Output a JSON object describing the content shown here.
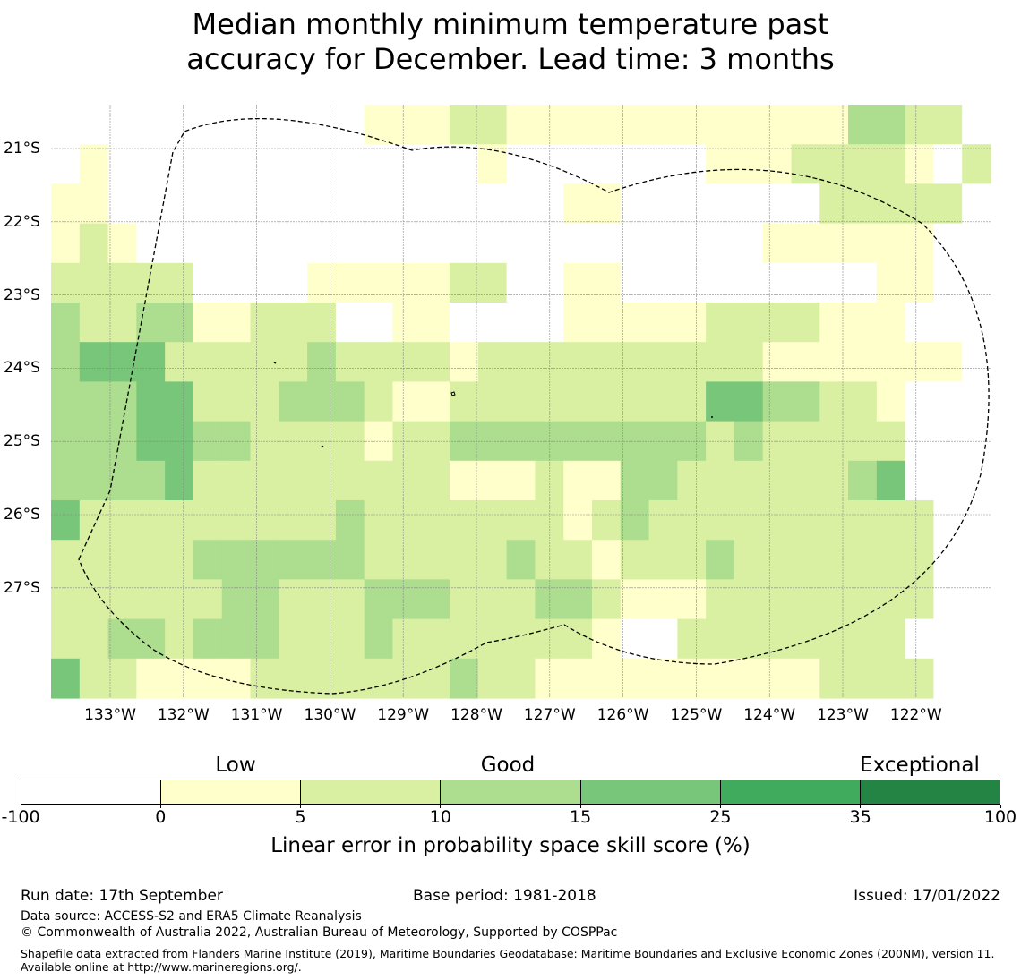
{
  "title": {
    "line1": "Median monthly minimum temperature past",
    "line2": "accuracy for December. Lead time: 3 months"
  },
  "map": {
    "longitude_labels": [
      "133°W",
      "132°W",
      "131°W",
      "130°W",
      "129°W",
      "128°W",
      "127°W",
      "126°W",
      "125°W",
      "124°W",
      "123°W",
      "122°W"
    ],
    "latitude_labels": [
      "21°S",
      "22°S",
      "23°S",
      "24°S",
      "25°S",
      "26°S",
      "27°S"
    ],
    "grid_rows": [
      "XXXXXXXXXXX111221111111111113322",
      "X1XXXXXXXXXXXXX1XXXXXXX11122221X2",
      "11XXXXXXXXXXXXXXXX11XXXXXXX22222",
      "121XXXXXXXXXXXXXXXXXXXXXX111111",
      "22222XXXX1111122XX11XXXX0000011",
      "3223311222XX11XXXX111112222111",
      "34442222232222122222222221111111",
      "333442223332112222222224433221",
      "333443322221223333333332322222",
      "333342222222221112113322222234",
      "4222222222322222221232222222222",
      "2222233333322222322122232222222",
      "2222223322233322233211122222222",
      "22332333222322222221XX22222222",
      "4221111222222232211111111112222"
    ],
    "color_scale": {
      "X": "#ffffff",
      "0": "#ffffff",
      "1": "#ffffcc",
      "2": "#d9f0a3",
      "3": "#addd8e",
      "4": "#78c679",
      "5": "#41ab5d",
      "6": "#238443"
    }
  },
  "legend": {
    "categories": [
      "Low",
      "Good",
      "Exceptional"
    ],
    "ticks": [
      "-100",
      "0",
      "5",
      "10",
      "15",
      "25",
      "35",
      "100"
    ],
    "colors": [
      "#ffffff",
      "#ffffcc",
      "#d9f0a3",
      "#addd8e",
      "#78c679",
      "#41ab5d",
      "#238443"
    ],
    "axis_label": "Linear error in probability space skill score (%)"
  },
  "footer": {
    "run_date": "Run date: 17th September",
    "base_period": "Base period: 1981-2018",
    "issued": "Issued: 17/01/2022",
    "data_source": "Data source: ACCESS-S2 and ERA5 Climate Reanalysis",
    "copyright": "© Commonwealth of Australia 2022, Australian Bureau of Meteorology, Supported by COSPPac",
    "shapefile": "Shapefile data extracted from Flanders Marine Institute (2019), Maritime Boundaries Geodatabase: Maritime Boundaries and Exclusive Economic Zones (200NM), version 11. Available online at http://www.marineregions.org/."
  }
}
